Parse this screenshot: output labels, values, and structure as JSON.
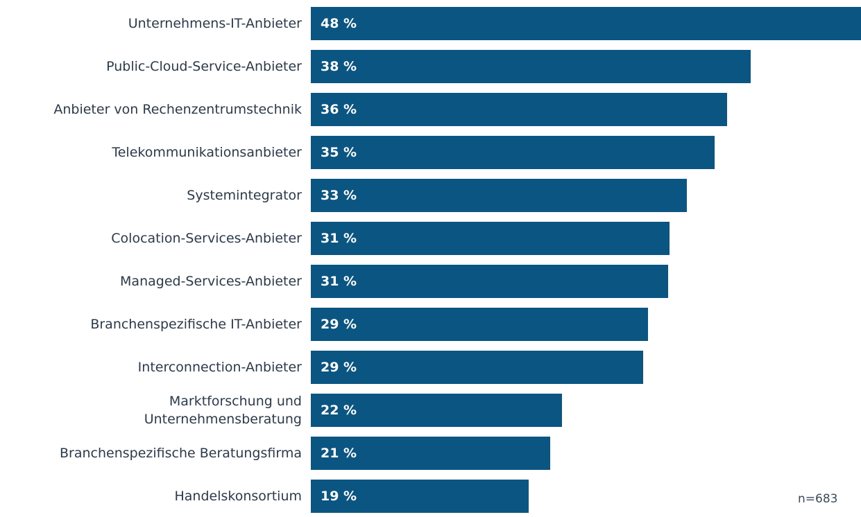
{
  "chart_data": {
    "type": "bar",
    "orientation": "horizontal",
    "categories": [
      "Unternehmens-IT-Anbieter",
      "Public-Cloud-Service-Anbieter",
      "Anbieter von Rechenzentrumstechnik",
      "Telekommunikationsanbieter",
      "Systemintegrator",
      "Colocation-Services-Anbieter",
      "Managed-Services-Anbieter",
      "Branchenspezifische IT-Anbieter",
      "Interconnection-Anbieter",
      "Marktforschung und\nUnternehmensberatung",
      "Branchenspezifische Beratungsfirma",
      "Handelskonsortium"
    ],
    "values": [
      48,
      38.4,
      36.3,
      35.2,
      32.8,
      31.3,
      31.2,
      29.4,
      29.0,
      21.9,
      20.9,
      19.0
    ],
    "value_labels": [
      "48 %",
      "38 %",
      "36 %",
      "35 %",
      "33 %",
      "31 %",
      "31 %",
      "29 %",
      "29 %",
      "22 %",
      "21 %",
      "19 %"
    ],
    "color": "#0b5583",
    "xlim": [
      0,
      48
    ],
    "annotation": "n=683"
  }
}
